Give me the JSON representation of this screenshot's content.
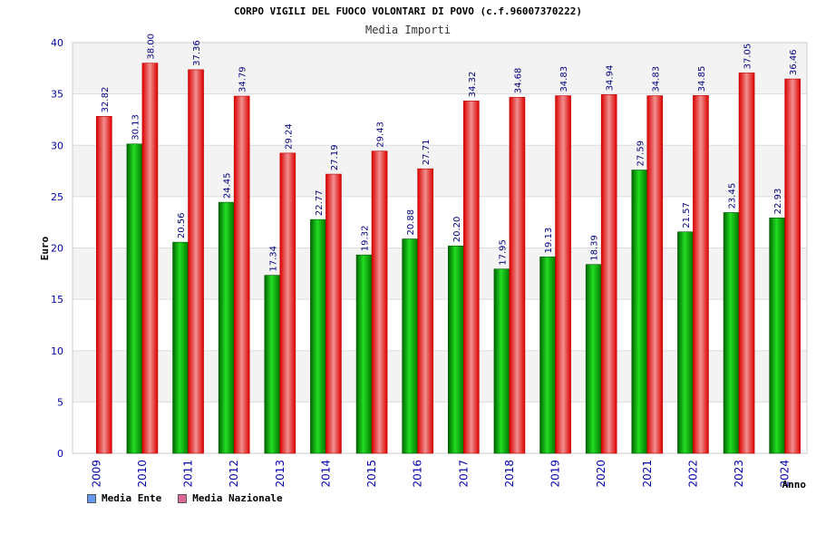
{
  "chart_data": {
    "type": "bar",
    "title": "CORPO VIGILI DEL FUOCO VOLONTARI DI POVO (c.f.96007370222)",
    "subtitle": "Media Importi",
    "xlabel": "Anno",
    "ylabel": "Euro",
    "ylim": [
      0,
      40
    ],
    "yticks": [
      0,
      5,
      10,
      15,
      20,
      25,
      30,
      35,
      40
    ],
    "categories": [
      "2009",
      "2010",
      "2011",
      "2012",
      "2013",
      "2014",
      "2015",
      "2016",
      "2017",
      "2018",
      "2019",
      "2020",
      "2021",
      "2022",
      "2023",
      "2024"
    ],
    "series": [
      {
        "name": "Media Ente",
        "color": "#00aa00",
        "legend_color": "#6699ee",
        "values": [
          null,
          30.13,
          20.56,
          24.45,
          17.34,
          22.77,
          19.32,
          20.88,
          20.2,
          17.95,
          19.13,
          18.39,
          27.59,
          21.57,
          23.45,
          22.93
        ],
        "labels": [
          "",
          "30.13",
          "20.56",
          "24.45",
          "17.34",
          "22.77",
          "19.32",
          "20.88",
          "20.20",
          "17.95",
          "19.13",
          "18.39",
          "27.59",
          "21.57",
          "23.45",
          "22.93"
        ]
      },
      {
        "name": "Media Nazionale",
        "color": "#ee0000",
        "legend_color": "#dd6699",
        "values": [
          32.82,
          38.0,
          37.36,
          34.79,
          29.24,
          27.19,
          29.43,
          27.71,
          34.32,
          34.68,
          34.83,
          34.94,
          34.83,
          34.85,
          37.05,
          36.46
        ],
        "labels": [
          "32.82",
          "38.00",
          "37.36",
          "34.79",
          "29.24",
          "27.19",
          "29.43",
          "27.71",
          "34.32",
          "34.68",
          "34.83",
          "34.94",
          "34.83",
          "34.85",
          "37.05",
          "36.46"
        ]
      }
    ],
    "grid": true,
    "legend": "bottom-left"
  }
}
